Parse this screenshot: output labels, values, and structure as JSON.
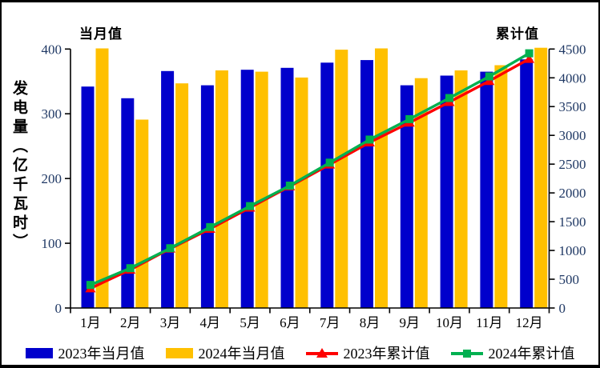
{
  "header": {
    "left_axis_head": "当月值",
    "right_axis_head": "累计值",
    "y_axis_title": "发电量（亿千瓦时）"
  },
  "colors": {
    "bar_2023": "#0000CC",
    "bar_2024": "#FFC000",
    "line_2023": "#FE0000",
    "line_2024": "#00B050",
    "tick_label": "#1F3864",
    "month_label": "#000000",
    "axis_line": "#000000"
  },
  "chart_data": {
    "type": "bar",
    "subtype": "dual-axis bar+line combo",
    "categories": [
      "1月",
      "2月",
      "3月",
      "4月",
      "5月",
      "6月",
      "7月",
      "8月",
      "9月",
      "10月",
      "11月",
      "12月"
    ],
    "series": [
      {
        "name": "2023年当月值",
        "kind": "bar",
        "axis": "left",
        "color": "#0000CC",
        "marker": "none",
        "values": [
          342,
          324,
          366,
          344,
          368,
          371,
          379,
          383,
          344,
          359,
          365,
          384
        ]
      },
      {
        "name": "2024年当月值",
        "kind": "bar",
        "axis": "left",
        "color": "#FFC000",
        "marker": "none",
        "values": [
          401,
          291,
          347,
          367,
          365,
          356,
          399,
          401,
          355,
          367,
          375,
          402
        ]
      },
      {
        "name": "2023年累计值",
        "kind": "line",
        "axis": "right",
        "color": "#FE0000",
        "marker": "triangle",
        "values": [
          342,
          666,
          1032,
          1376,
          1744,
          2115,
          2494,
          2877,
          3221,
          3580,
          3945,
          4329
        ]
      },
      {
        "name": "2024年累计值",
        "kind": "line",
        "axis": "right",
        "color": "#00B050",
        "marker": "square",
        "values": [
          401,
          692,
          1039,
          1406,
          1771,
          2127,
          2526,
          2927,
          3282,
          3649,
          4024,
          4426
        ]
      }
    ],
    "left_axis": {
      "title": "发电量（亿千瓦时）",
      "min": 0,
      "max": 400,
      "step": 100,
      "ticks": [
        "0",
        "100",
        "200",
        "300",
        "400"
      ]
    },
    "right_axis": {
      "title": "累计值",
      "min": 0,
      "max": 4500,
      "step": 500,
      "ticks": [
        "0",
        "500",
        "1000",
        "1500",
        "2000",
        "2500",
        "3000",
        "3500",
        "4000",
        "4500"
      ]
    },
    "legend_position": "bottom",
    "grid": false
  }
}
